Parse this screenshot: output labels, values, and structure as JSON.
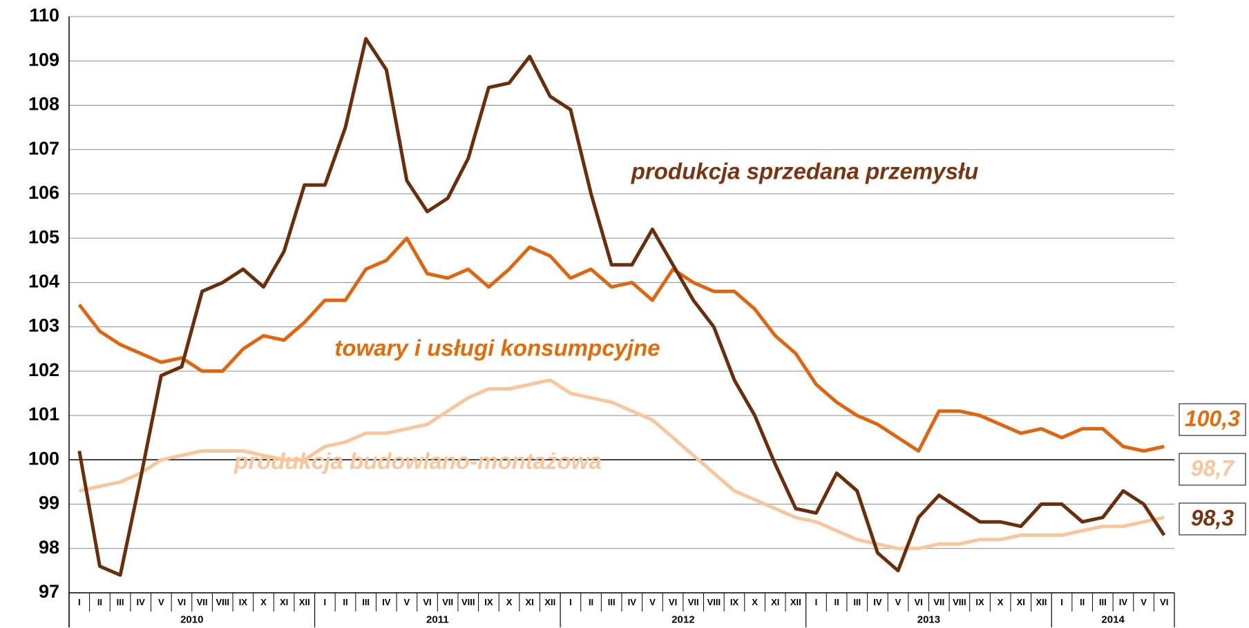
{
  "chart_data": {
    "type": "line",
    "categories": [
      "I",
      "II",
      "III",
      "IV",
      "V",
      "VI",
      "VII",
      "VIII",
      "IX",
      "X",
      "XI",
      "XII",
      "I",
      "II",
      "III",
      "IV",
      "V",
      "VI",
      "VII",
      "VIII",
      "IX",
      "X",
      "XI",
      "XII",
      "I",
      "II",
      "III",
      "IV",
      "V",
      "VI",
      "VII",
      "VIII",
      "IX",
      "X",
      "XI",
      "XII",
      "I",
      "II",
      "III",
      "IV",
      "V",
      "VI",
      "VII",
      "VIII",
      "IX",
      "X",
      "XI",
      "XII",
      "I",
      "II",
      "III",
      "IV",
      "V",
      "VI"
    ],
    "category_groups": [
      "2010",
      "2011",
      "2012",
      "2013",
      "2014"
    ],
    "series": [
      {
        "name": "produkcja sprzedana przemysłu",
        "color": "#6b2e0a",
        "label_color": "#7a3410",
        "values": [
          100.2,
          97.6,
          97.4,
          99.6,
          101.9,
          102.1,
          103.8,
          104.0,
          104.3,
          103.9,
          104.7,
          106.2,
          106.2,
          107.5,
          109.5,
          108.8,
          106.3,
          105.6,
          105.9,
          106.8,
          108.4,
          108.5,
          109.1,
          108.2,
          107.9,
          106.0,
          104.4,
          104.4,
          105.2,
          104.4,
          103.6,
          103.0,
          101.8,
          101.0,
          99.9,
          98.9,
          98.8,
          99.7,
          99.3,
          97.9,
          97.5,
          98.7,
          99.2,
          98.9,
          98.6,
          98.6,
          98.5,
          99.0,
          99.0,
          98.6,
          98.7,
          99.3,
          99.0,
          98.3
        ],
        "value_labels": [
          null,
          null,
          null,
          null,
          null,
          null,
          null,
          null,
          null,
          null,
          null,
          null,
          null,
          null,
          null,
          null,
          null,
          null,
          null,
          null,
          null,
          null,
          null,
          null,
          null,
          null,
          null,
          null,
          null,
          null,
          null,
          null,
          null,
          null,
          null,
          null,
          null,
          null,
          null,
          null,
          null,
          null,
          null,
          null,
          null,
          null,
          null,
          null,
          null,
          null,
          null,
          null,
          null,
          "98,3"
        ]
      },
      {
        "name": "towary i usługi konsumpcyjne",
        "color": "#e0650f",
        "label_color": "#e36c0a",
        "values": [
          103.5,
          102.9,
          102.6,
          102.4,
          102.2,
          102.3,
          102.0,
          102.0,
          102.5,
          102.8,
          102.7,
          103.1,
          103.6,
          103.6,
          104.3,
          104.5,
          105.0,
          104.2,
          104.1,
          104.3,
          103.9,
          104.3,
          104.8,
          104.6,
          104.1,
          104.3,
          103.9,
          104.0,
          103.6,
          104.3,
          104.0,
          103.8,
          103.8,
          103.4,
          102.8,
          102.4,
          101.7,
          101.3,
          101.0,
          100.8,
          100.5,
          100.2,
          101.1,
          101.1,
          101.0,
          100.8,
          100.6,
          100.7,
          100.5,
          100.7,
          100.7,
          100.3,
          100.2,
          100.3
        ],
        "value_labels": [
          null,
          null,
          null,
          null,
          null,
          null,
          null,
          null,
          null,
          null,
          null,
          null,
          null,
          null,
          null,
          null,
          null,
          null,
          null,
          null,
          null,
          null,
          null,
          null,
          null,
          null,
          null,
          null,
          null,
          null,
          null,
          null,
          null,
          null,
          null,
          null,
          null,
          null,
          null,
          null,
          null,
          null,
          null,
          null,
          null,
          null,
          null,
          null,
          null,
          null,
          null,
          null,
          null,
          "100,3"
        ]
      },
      {
        "name": "produkcja budowlano-montażowa",
        "color": "#f9c69c",
        "label_color": "#fbc59a",
        "values": [
          99.3,
          99.4,
          99.5,
          99.7,
          100.0,
          100.1,
          100.2,
          100.2,
          100.2,
          100.1,
          100.0,
          100.0,
          100.3,
          100.4,
          100.6,
          100.6,
          100.7,
          100.8,
          101.1,
          101.4,
          101.6,
          101.6,
          101.7,
          101.8,
          101.5,
          101.4,
          101.3,
          101.1,
          100.9,
          100.5,
          100.1,
          99.7,
          99.3,
          99.1,
          98.9,
          98.7,
          98.6,
          98.4,
          98.2,
          98.1,
          98.0,
          98.0,
          98.1,
          98.1,
          98.2,
          98.2,
          98.3,
          98.3,
          98.3,
          98.4,
          98.5,
          98.5,
          98.6,
          98.7
        ],
        "value_labels": [
          null,
          null,
          null,
          null,
          null,
          null,
          null,
          null,
          null,
          null,
          null,
          null,
          null,
          null,
          null,
          null,
          null,
          null,
          null,
          null,
          null,
          null,
          null,
          null,
          null,
          null,
          null,
          null,
          null,
          null,
          null,
          null,
          null,
          null,
          null,
          null,
          null,
          null,
          null,
          null,
          null,
          null,
          null,
          null,
          null,
          null,
          null,
          null,
          null,
          null,
          null,
          null,
          null,
          "98,7"
        ]
      }
    ],
    "ylim": [
      97,
      110
    ],
    "yticks": [
      97,
      98,
      99,
      100,
      101,
      102,
      103,
      104,
      105,
      106,
      107,
      108,
      109,
      110
    ],
    "baseline": 100,
    "grid": true
  }
}
